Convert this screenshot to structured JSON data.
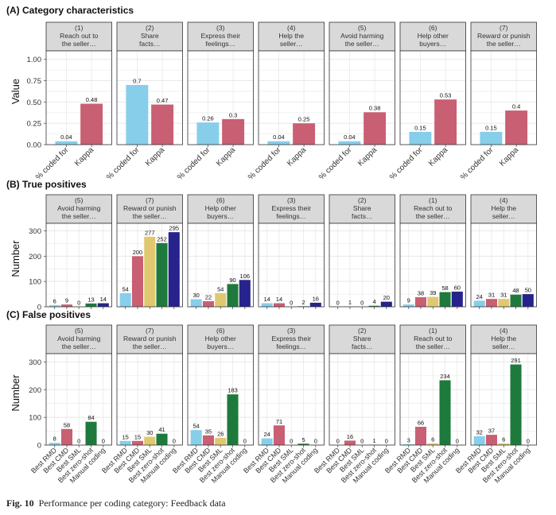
{
  "colors": {
    "light_blue": "#87CEEB",
    "pink": "#C95F73",
    "sand": "#E0C870",
    "green": "#1E7A3C",
    "navy": "#27238C",
    "strip_fill": "#D9D9D9",
    "grid": "#E8E8E8"
  },
  "caption": {
    "label": "Fig. 10",
    "text": "Performance per coding category: Feedback data"
  },
  "chart_data": [
    {
      "type": "bar",
      "panel": "A",
      "title": "(A) Category characteristics",
      "ylabel": "Value",
      "ylim": [
        0,
        1.1
      ],
      "yticks": [
        "0.00",
        "0.25",
        "0.50",
        "0.75",
        "1.00"
      ],
      "ytick_values": [
        0,
        0.25,
        0.5,
        0.75,
        1.0
      ],
      "grid": true,
      "bar_labels": [
        "% coded for",
        "Kappa"
      ],
      "bar_colors": [
        "light_blue",
        "pink"
      ],
      "facets": [
        {
          "strip": [
            "(1)",
            "Reach out to",
            "the seller…"
          ],
          "values": [
            0.04,
            0.48
          ],
          "labels": [
            "0.04",
            "0.48"
          ]
        },
        {
          "strip": [
            "(2)",
            "Share",
            "facts…"
          ],
          "values": [
            0.7,
            0.47
          ],
          "labels": [
            "0.7",
            "0.47"
          ]
        },
        {
          "strip": [
            "(3)",
            "Express their",
            "feelings…"
          ],
          "values": [
            0.26,
            0.3
          ],
          "labels": [
            "0.26",
            "0.3"
          ]
        },
        {
          "strip": [
            "(4)",
            "Help the",
            "seller…"
          ],
          "values": [
            0.04,
            0.25
          ],
          "labels": [
            "0.04",
            "0.25"
          ]
        },
        {
          "strip": [
            "(5)",
            "Avoid harming",
            "the seller…"
          ],
          "values": [
            0.04,
            0.38
          ],
          "labels": [
            "0.04",
            "0.38"
          ]
        },
        {
          "strip": [
            "(6)",
            "Help other",
            "buyers…"
          ],
          "values": [
            0.15,
            0.53
          ],
          "labels": [
            "0.15",
            "0.53"
          ]
        },
        {
          "strip": [
            "(7)",
            "Reward or punish",
            "the seller…"
          ],
          "values": [
            0.15,
            0.4
          ],
          "labels": [
            "0.15",
            "0.4"
          ]
        }
      ]
    },
    {
      "type": "bar",
      "panel": "B",
      "title": "(B) True positives",
      "ylabel": "Number",
      "ylim": [
        0,
        330
      ],
      "yticks": [
        "0",
        "100",
        "200",
        "300"
      ],
      "ytick_values": [
        0,
        100,
        200,
        300
      ],
      "grid": true,
      "bar_colors": [
        "light_blue",
        "pink",
        "sand",
        "green",
        "navy"
      ],
      "facets": [
        {
          "strip": [
            "(5)",
            "Avoid harming",
            "the seller…"
          ],
          "values": [
            6,
            9,
            0,
            13,
            14
          ],
          "labels": [
            "6",
            "9",
            "0",
            "13",
            "14"
          ]
        },
        {
          "strip": [
            "(7)",
            "Reward or punish",
            "the seller…"
          ],
          "values": [
            54,
            200,
            277,
            252,
            295
          ],
          "labels": [
            "54",
            "200",
            "277",
            "252",
            "295"
          ]
        },
        {
          "strip": [
            "(6)",
            "Help other",
            "buyers…"
          ],
          "values": [
            30,
            22,
            54,
            90,
            106
          ],
          "labels": [
            "30",
            "22",
            "54",
            "90",
            "106"
          ]
        },
        {
          "strip": [
            "(3)",
            "Express their",
            "feelings…"
          ],
          "values": [
            14,
            14,
            0,
            2,
            16
          ],
          "labels": [
            "14",
            "14",
            "0",
            "2",
            "16"
          ]
        },
        {
          "strip": [
            "(2)",
            "Share",
            "facts…"
          ],
          "values": [
            0,
            1,
            0,
            4,
            20
          ],
          "labels": [
            "0",
            "1",
            "0",
            "4",
            "20"
          ]
        },
        {
          "strip": [
            "(1)",
            "Reach out to",
            "the seller…"
          ],
          "values": [
            9,
            38,
            39,
            58,
            60
          ],
          "labels": [
            "9",
            "38",
            "39",
            "58",
            "60"
          ]
        },
        {
          "strip": [
            "(4)",
            "Help the",
            "seller…"
          ],
          "values": [
            24,
            31,
            31,
            48,
            50
          ],
          "labels": [
            "24",
            "31",
            "31",
            "48",
            "50"
          ]
        }
      ]
    },
    {
      "type": "bar",
      "panel": "C",
      "title": "(C) False positives",
      "ylabel": "Number",
      "ylim": [
        0,
        330
      ],
      "yticks": [
        "0",
        "100",
        "200",
        "300"
      ],
      "ytick_values": [
        0,
        100,
        200,
        300
      ],
      "grid": true,
      "bar_labels": [
        "Best RMD",
        "Best CMD",
        "Best SML",
        "Best zero-shot",
        "Manual coding"
      ],
      "bar_colors": [
        "light_blue",
        "pink",
        "sand",
        "green",
        "navy"
      ],
      "facets": [
        {
          "strip": [
            "(5)",
            "Avoid harming",
            "the seller…"
          ],
          "values": [
            8,
            58,
            0,
            84,
            0
          ],
          "labels": [
            "8",
            "58",
            "0",
            "84",
            "0"
          ]
        },
        {
          "strip": [
            "(7)",
            "Reward or punish",
            "the seller…"
          ],
          "values": [
            15,
            15,
            30,
            41,
            0
          ],
          "labels": [
            "15",
            "15",
            "30",
            "41",
            "0"
          ]
        },
        {
          "strip": [
            "(6)",
            "Help other",
            "buyers…"
          ],
          "values": [
            54,
            35,
            26,
            183,
            0
          ],
          "labels": [
            "54",
            "35",
            "26",
            "183",
            "0"
          ]
        },
        {
          "strip": [
            "(3)",
            "Express their",
            "feelings…"
          ],
          "values": [
            24,
            71,
            0,
            5,
            0
          ],
          "labels": [
            "24",
            "71",
            "0",
            "5",
            "0"
          ]
        },
        {
          "strip": [
            "(2)",
            "Share",
            "facts…"
          ],
          "values": [
            0,
            16,
            0,
            1,
            0
          ],
          "labels": [
            "0",
            "16",
            "0",
            "1",
            "0"
          ]
        },
        {
          "strip": [
            "(1)",
            "Reach out to",
            "the seller…"
          ],
          "values": [
            3,
            66,
            6,
            234,
            0
          ],
          "labels": [
            "3",
            "66",
            "6",
            "234",
            "0"
          ]
        },
        {
          "strip": [
            "(4)",
            "Help the",
            "seller…"
          ],
          "values": [
            32,
            37,
            6,
            291,
            0
          ],
          "labels": [
            "32",
            "37",
            "6",
            "291",
            "0"
          ]
        }
      ]
    }
  ]
}
